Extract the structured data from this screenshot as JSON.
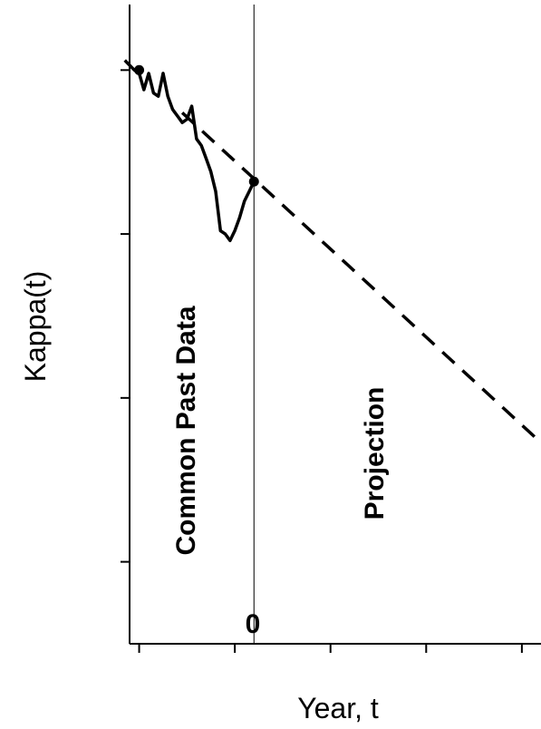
{
  "chart_data": {
    "type": "line",
    "title": "",
    "xlabel": "Year, t",
    "ylabel": "Kappa(t)",
    "xlim": [
      -13,
      30
    ],
    "ylim": [
      -175,
      20
    ],
    "x_zero_label": "0",
    "grid": false,
    "legend": "none",
    "annotations": {
      "past_region": "Common Past Data",
      "projection_region": "Projection"
    },
    "series": [
      {
        "style": "solid",
        "x": [
          -13.5,
          -12.5,
          -12,
          -11.5,
          -11,
          -10.5,
          -10,
          -9.5,
          -9,
          -8.5,
          -8,
          -7.5,
          -7,
          -6.5,
          -6,
          -5.5,
          -5,
          -4.5,
          -4,
          -3.5,
          -3,
          -2.5,
          -2,
          -1.5,
          -1,
          -0.5,
          0
        ],
        "y": [
          3,
          0,
          -1,
          -6,
          -1,
          -7,
          -8,
          -1,
          -8,
          -12,
          -14,
          -16,
          -15,
          -11,
          -21,
          -23,
          -27,
          -31,
          -37,
          -49,
          -50,
          -52,
          -49,
          -45,
          -40,
          -37,
          -34
        ]
      },
      {
        "style": "dashed",
        "x": [
          -7.5,
          30.5
        ],
        "y": [
          -13,
          -115
        ]
      }
    ],
    "markers": [
      {
        "x": -12,
        "y": 0
      },
      {
        "x": 0,
        "y": -34
      }
    ],
    "vline_x": 0
  }
}
